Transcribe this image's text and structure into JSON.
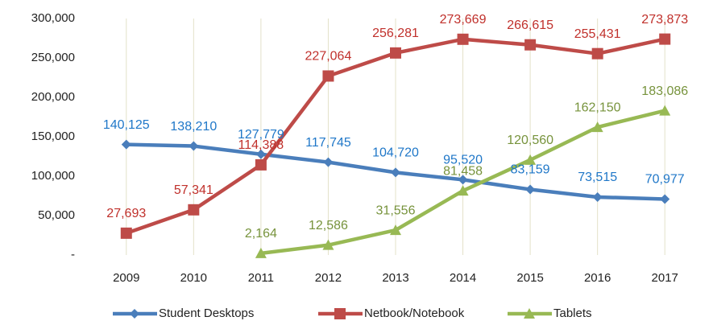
{
  "chart_data": {
    "type": "line",
    "categories": [
      "2009",
      "2010",
      "2011",
      "2012",
      "2013",
      "2014",
      "2015",
      "2016",
      "2017"
    ],
    "series": [
      {
        "name": "Student Desktops",
        "color": "#4a7ebb",
        "label_color": "#1f77c8",
        "marker": "diamond",
        "values": [
          140125,
          138210,
          127779,
          117745,
          104720,
          95520,
          83159,
          73515,
          70977
        ],
        "value_labels": [
          "140,125",
          "138,210",
          "127,779",
          "117,745",
          "104,720",
          "95,520",
          "83,159",
          "73,515",
          "70,977"
        ]
      },
      {
        "name": "Netbook/Notebook",
        "color": "#be4b48",
        "label_color": "#c0302b",
        "marker": "square",
        "values": [
          27693,
          57341,
          114388,
          227064,
          256281,
          273669,
          266615,
          255431,
          273873
        ],
        "value_labels": [
          "27,693",
          "57,341",
          "114,388",
          "227,064",
          "256,281",
          "273,669",
          "266,615",
          "255,431",
          "273,873"
        ]
      },
      {
        "name": "Tablets",
        "color": "#98b954",
        "label_color": "#77933c",
        "marker": "triangle",
        "values": [
          null,
          null,
          2164,
          12586,
          31556,
          81458,
          120560,
          162150,
          183086
        ],
        "value_labels": [
          null,
          null,
          "2,164",
          "12,586",
          "31,556",
          "81,458",
          "120,560",
          "162,150",
          "183,086"
        ]
      }
    ],
    "ylim": [
      0,
      300000
    ],
    "yticks": [
      {
        "value": 0,
        "label": "-"
      },
      {
        "value": 50000,
        "label": "50,000"
      },
      {
        "value": 100000,
        "label": "100,000"
      },
      {
        "value": 150000,
        "label": "150,000"
      },
      {
        "value": 200000,
        "label": "200,000"
      },
      {
        "value": 250000,
        "label": "250,000"
      },
      {
        "value": 300000,
        "label": "300,000"
      }
    ],
    "grid": "vertical",
    "legend": "bottom"
  }
}
